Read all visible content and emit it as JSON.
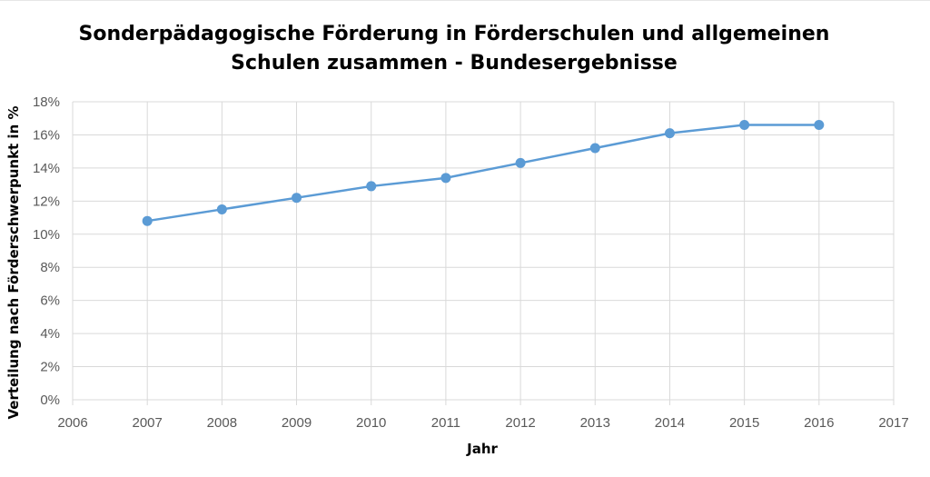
{
  "chart_data": {
    "type": "line",
    "title_lines": [
      "Sonderpädagogische Förderung in Förderschulen und allgemeinen",
      "Schulen zusammen - Bundesergebnisse"
    ],
    "xlabel": "Jahr",
    "ylabel": "Verteilung nach Förderschwerpunkt in %",
    "xlim": [
      2006,
      2017
    ],
    "ylim": [
      0,
      18
    ],
    "x_ticks": [
      "2006",
      "2007",
      "2008",
      "2009",
      "2010",
      "2011",
      "2012",
      "2013",
      "2014",
      "2015",
      "2016",
      "2017"
    ],
    "y_ticks": [
      "0%",
      "2%",
      "4%",
      "6%",
      "8%",
      "10%",
      "12%",
      "14%",
      "16%",
      "18%"
    ],
    "grid": true,
    "legend": "none",
    "series": [
      {
        "x": [
          2007,
          2008,
          2009,
          2010,
          2011,
          2012,
          2013,
          2014,
          2015,
          2016
        ],
        "y": [
          10.8,
          11.5,
          12.2,
          12.9,
          13.4,
          14.3,
          15.2,
          16.1,
          16.6,
          16.6
        ],
        "color": "#5b9bd5"
      }
    ],
    "colors": {
      "grid": "#d9d9d9",
      "tick_text": "#595959"
    }
  }
}
